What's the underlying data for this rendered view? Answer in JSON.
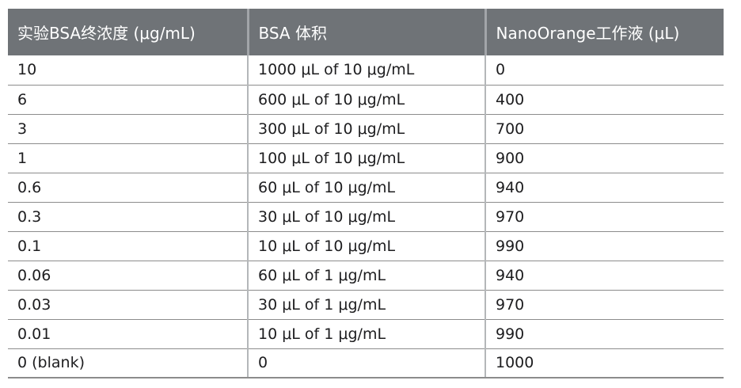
{
  "table": {
    "columns": [
      {
        "label": "实验BSA终浓度 (μg/mL)"
      },
      {
        "label": "BSA 体积"
      },
      {
        "label": "NanoOrange工作液 (μL)"
      }
    ],
    "rows": [
      {
        "cells": [
          "10",
          "1000 μL of 10 μg/mL",
          "0"
        ]
      },
      {
        "cells": [
          "6",
          "600 μL of 10 μg/mL",
          "400"
        ]
      },
      {
        "cells": [
          "3",
          "300 μL of 10 μg/mL",
          "700"
        ]
      },
      {
        "cells": [
          "1",
          "100 μL of 10 μg/mL",
          "900"
        ]
      },
      {
        "cells": [
          "0.6",
          "60 μL of 10 μg/mL",
          "940"
        ]
      },
      {
        "cells": [
          "0.3",
          "30 μL of 10 μg/mL",
          "970"
        ]
      },
      {
        "cells": [
          "0.1",
          "10 μL of 10 μg/mL",
          "990"
        ]
      },
      {
        "cells": [
          "0.06",
          "60 μL of 1 μg/mL",
          "940"
        ]
      },
      {
        "cells": [
          "0.03",
          "30 μL of 1 μg/mL",
          "970"
        ]
      },
      {
        "cells": [
          "0.01",
          "10 μL of 1 μg/mL",
          "990"
        ]
      },
      {
        "cells": [
          "0 (blank)",
          "0",
          "1000"
        ]
      }
    ]
  },
  "colors": {
    "header_bg": "#6f7377",
    "header_text": "#ffffff",
    "body_text": "#1d1d1f",
    "row_divider": "#8c8c8c",
    "col_divider": "#b4b7b9",
    "header_divider": "#a2a5a9"
  }
}
